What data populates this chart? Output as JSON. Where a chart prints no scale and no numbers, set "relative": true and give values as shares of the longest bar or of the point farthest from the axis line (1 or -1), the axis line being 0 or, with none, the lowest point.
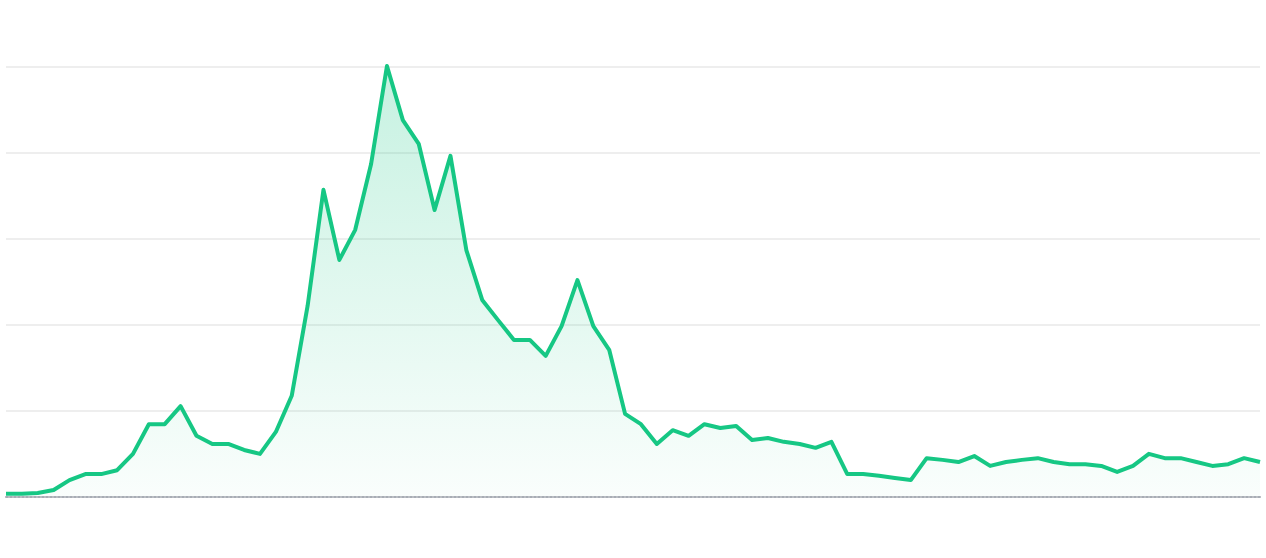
{
  "chart_data": {
    "type": "area",
    "relative": true,
    "grid": "y",
    "color": "#16c784",
    "categories": [
      null,
      null,
      null,
      null,
      null,
      null,
      null,
      null,
      null,
      null,
      null,
      null,
      null,
      null,
      null,
      null,
      null,
      null,
      null,
      null,
      null,
      null,
      null,
      null,
      null,
      null,
      null,
      null,
      null,
      null,
      null,
      null,
      null,
      null,
      null,
      null,
      null,
      null,
      null,
      null,
      null,
      null,
      null,
      null,
      null,
      null,
      null,
      null,
      null,
      null,
      null,
      null,
      null,
      null,
      null,
      null,
      null,
      null,
      null,
      null,
      null,
      null,
      null,
      null,
      null,
      null,
      null,
      null,
      null,
      null,
      null,
      null,
      null,
      null,
      null,
      null,
      null,
      null,
      null,
      null
    ],
    "values": [
      0.005,
      0.005,
      0.007,
      0.014,
      0.037,
      0.051,
      0.051,
      0.06,
      0.098,
      0.167,
      0.167,
      0.209,
      0.14,
      0.121,
      0.121,
      0.107,
      0.098,
      0.149,
      0.233,
      0.442,
      0.712,
      0.549,
      0.619,
      0.772,
      1,
      0.874,
      0.819,
      0.665,
      0.791,
      0.572,
      0.456,
      0.409,
      0.363,
      0.363,
      0.326,
      0.395,
      0.502,
      0.395,
      0.34,
      0.191,
      0.167,
      0.121,
      0.153,
      0.14,
      0.167,
      0.158,
      0.163,
      0.13,
      0.135,
      0.126,
      0.121,
      0.112,
      0.126,
      0.051,
      0.051,
      0.047,
      0.042,
      0.037,
      0.088,
      0.084,
      0.079,
      0.093,
      0.07,
      0.079,
      0.084,
      0.088,
      0.079,
      0.074,
      0.074,
      0.07,
      0.056,
      0.07,
      0.098,
      0.088,
      0.088,
      0.079,
      0.07,
      0.074,
      0.088,
      0.079
    ]
  }
}
